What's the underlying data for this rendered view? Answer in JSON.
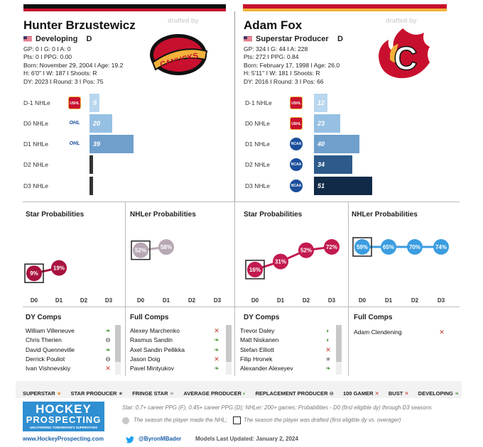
{
  "left": {
    "name": "Hunter Brzustewicz",
    "drafted_by": "drafted by",
    "status": "Developing",
    "position": "D",
    "stats": [
      "GP: 0 I G: 0 I A: 0",
      "Pts: 0 I PPG: 0.00",
      "Born: November 29, 2004 I Age: 19.2",
      "H: 6'0'' I W: 187 I Shoots: R",
      "DY: 2023 I Round: 3 I Pos: 75"
    ],
    "team_logo": "vancouver-canucks-skate-logo",
    "nhle": [
      {
        "label": "D-1 NHLe",
        "value": 9,
        "league": "USHL",
        "color": "#b9d7ee"
      },
      {
        "label": "D0 NHLe",
        "value": 20,
        "league": "OHL",
        "color": "#96c0e3"
      },
      {
        "label": "D1 NHLe",
        "value": 39,
        "league": "OHL",
        "color": "#6f9fcc"
      },
      {
        "label": "D2 NHLe",
        "value": null,
        "league": "",
        "color": "#fff"
      },
      {
        "label": "D3 NHLe",
        "value": null,
        "league": "",
        "color": "#fff"
      }
    ],
    "star_title": "Star Probabilities",
    "nhler_title": "NHLer Probabilities",
    "star_probs": [
      {
        "x": "D0",
        "v": "9%",
        "n": 9,
        "drafted": true
      },
      {
        "x": "D1",
        "v": "19%",
        "n": 19,
        "drafted": false
      }
    ],
    "nhler_probs": [
      {
        "x": "D0",
        "v": "52%",
        "n": 52,
        "drafted": true
      },
      {
        "x": "D1",
        "v": "58%",
        "n": 58,
        "drafted": false
      }
    ],
    "dy_title": "DY Comps",
    "full_title": "Full Comps",
    "dy_comps": [
      {
        "name": "William Villeneuve",
        "icon": "leaf-icon"
      },
      {
        "name": "Chris Therien",
        "icon": "minus-circle-icon"
      },
      {
        "name": "David Quenneville",
        "icon": "leaf-icon"
      },
      {
        "name": "Derrick Pouliot",
        "icon": "minus-circle-icon"
      },
      {
        "name": "Ivan Vishnevskiy",
        "icon": "x-icon"
      }
    ],
    "full_comps": [
      {
        "name": "Alexey Marchenko",
        "icon": "x-icon"
      },
      {
        "name": "Rasmus Sandin",
        "icon": "leaf-icon"
      },
      {
        "name": "Axel Sandin Pellikka",
        "icon": "leaf-icon"
      },
      {
        "name": "Jason Doig",
        "icon": "x-icon"
      },
      {
        "name": "Pavel Mintyukov",
        "icon": "leaf-icon"
      }
    ]
  },
  "right": {
    "name": "Adam Fox",
    "drafted_by": "drafted by",
    "status": "Superstar Producer",
    "position": "D",
    "stats": [
      "GP: 324 I G: 44 I A: 228",
      "Pts: 272 I PPG: 0.84",
      "Born: February 17, 1998 I Age: 26.0",
      "H: 5'11'' I W: 181 I Shoots: R",
      "DY: 2016 I Round: 3 I Pos: 66"
    ],
    "team_logo": "calgary-flames-logo",
    "nhle": [
      {
        "label": "D-1 NHLe",
        "value": 12,
        "league": "USHL",
        "color": "#b9d7ee"
      },
      {
        "label": "D0 NHLe",
        "value": 23,
        "league": "USHL",
        "color": "#96c0e3"
      },
      {
        "label": "D1 NHLe",
        "value": 40,
        "league": "NCAA",
        "color": "#6f9fcc"
      },
      {
        "label": "D2 NHLe",
        "value": 34,
        "league": "NCAA",
        "color": "#2d5a8a"
      },
      {
        "label": "D3 NHLe",
        "value": 51,
        "league": "NCAA",
        "color": "#102a47"
      }
    ],
    "star_title": "Star Probabilities",
    "nhler_title": "NHLer Probabilities",
    "star_probs": [
      {
        "x": "D0",
        "v": "16%",
        "n": 16,
        "drafted": true
      },
      {
        "x": "D1",
        "v": "31%",
        "n": 31,
        "drafted": false
      },
      {
        "x": "D2",
        "v": "52%",
        "n": 52,
        "drafted": false
      },
      {
        "x": "D3",
        "v": "72%",
        "n": 72,
        "drafted": false
      }
    ],
    "nhler_probs": [
      {
        "x": "D0",
        "v": "59%",
        "n": 59,
        "drafted": true
      },
      {
        "x": "D1",
        "v": "65%",
        "n": 65,
        "drafted": false
      },
      {
        "x": "D2",
        "v": "70%",
        "n": 70,
        "drafted": false
      },
      {
        "x": "D3",
        "v": "74%",
        "n": 74,
        "drafted": false
      }
    ],
    "dy_title": "DY Comps",
    "full_title": "Full Comps",
    "dy_comps": [
      {
        "name": "Trevor Daley",
        "icon": "half-circle-icon"
      },
      {
        "name": "Matt Niskanen",
        "icon": "half-circle-icon"
      },
      {
        "name": "Stefan Elliott",
        "icon": "x-icon"
      },
      {
        "name": "Filip Hronek",
        "icon": "star-icon"
      },
      {
        "name": "Alexander Alexeyev",
        "icon": "leaf-icon"
      }
    ],
    "full_comps": [
      {
        "name": "Adam Clendening",
        "icon": "x-icon"
      }
    ]
  },
  "axis_labels": [
    "D0",
    "D1",
    "D2",
    "D3"
  ],
  "legend": [
    {
      "label": "SUPERSTAR",
      "icon": "star-icon",
      "color": "#e8912d"
    },
    {
      "label": "STAR PRODUCER",
      "icon": "star-icon",
      "color": "#555"
    },
    {
      "label": "FRINGE STAR",
      "icon": "star-icon",
      "color": "#aaa"
    },
    {
      "label": "AVERAGE PRODUCER",
      "icon": "half-circle-icon",
      "color": "#4a9a3a"
    },
    {
      "label": "REPLACEMENT PRODUCER",
      "icon": "minus-circle-icon",
      "color": "#333"
    },
    {
      "label": "100 GAMER",
      "icon": "x-icon",
      "color": "#c0392b"
    },
    {
      "label": "BUST",
      "icon": "x-icon",
      "color": "#c0392b"
    },
    {
      "label": "DEVELOPING",
      "icon": "leaf-icon",
      "color": "#4a9a3a"
    }
  ],
  "footer": {
    "logo_line1": "HOCKEY",
    "logo_line2": "PROSPECTING",
    "logo_tag": "UNCOVERING TOMORROW'S SUPERSTARS",
    "note1": "Star: 0.7+ career PPG (F), 0.45+ career PPG (D); NHLer: 200+ games; Probabilities - D0 (first eligible dy) through D3 seasons",
    "note2a": "The season the player made the NHL;",
    "note2b": "The season the player was drafted (first eligible dy vs. overager)",
    "website": "www.HockeyProspecting.com",
    "twitter": "@ByronMBader",
    "updated": "Models Last Updated: January 2, 2024"
  },
  "colors": {
    "star": "#a8123e",
    "nhler_left": "#b7a8b4",
    "nhler_right": "#3b9de0",
    "star_right": "#c21a4e"
  }
}
